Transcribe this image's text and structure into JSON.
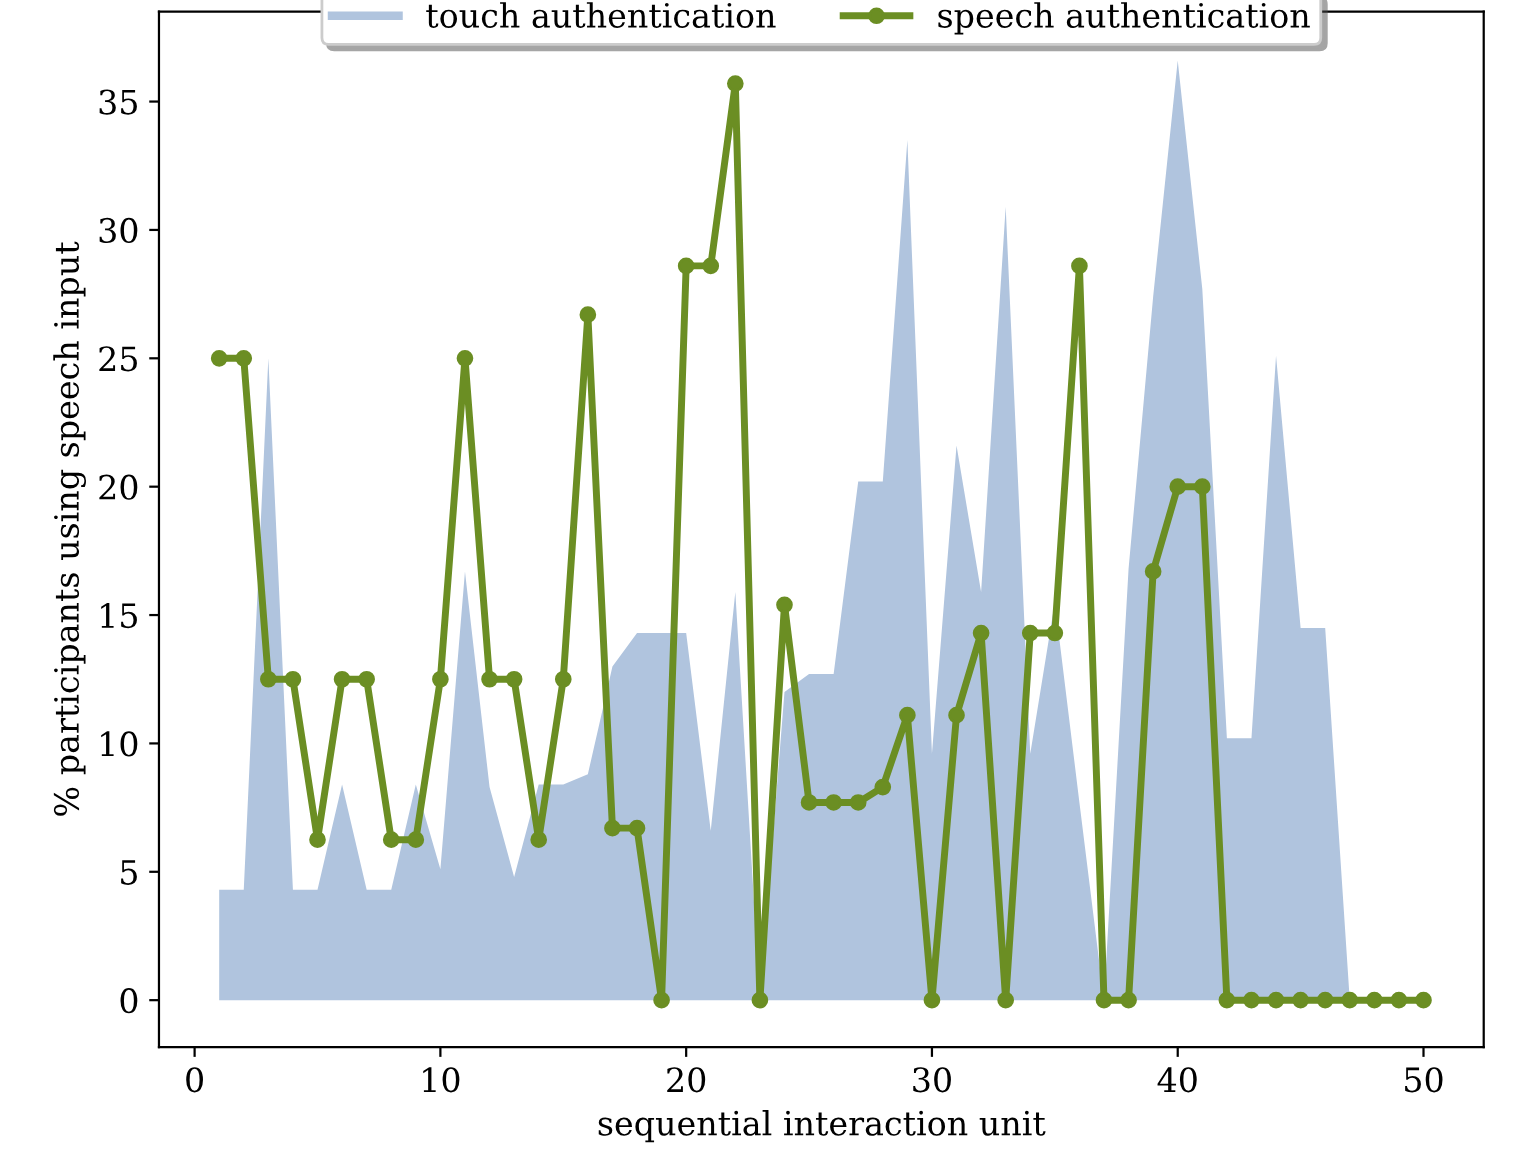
{
  "chart_data": {
    "type": "line",
    "xlabel": "sequential interaction unit",
    "ylabel": "% participants using speech input",
    "x": [
      1,
      2,
      3,
      4,
      5,
      6,
      7,
      8,
      9,
      10,
      11,
      12,
      13,
      14,
      15,
      16,
      17,
      18,
      19,
      20,
      21,
      22,
      23,
      24,
      25,
      26,
      27,
      28,
      29,
      30,
      31,
      32,
      33,
      34,
      35,
      36,
      37,
      38,
      39,
      40,
      41,
      42,
      43,
      44,
      45,
      46,
      47,
      48,
      49,
      50
    ],
    "series": [
      {
        "name": "touch authentication",
        "type": "area",
        "color": "#b0c4de",
        "values": [
          4.3,
          4.3,
          25,
          4.3,
          4.3,
          8.4,
          4.3,
          4.3,
          8.4,
          5.1,
          16.7,
          8.3,
          4.8,
          8.4,
          8.4,
          8.8,
          13,
          14.3,
          14.3,
          14.3,
          6.6,
          15.9,
          0,
          12,
          12.7,
          12.7,
          20.2,
          20.2,
          33.5,
          9.6,
          21.6,
          15.9,
          30.9,
          9.6,
          15.5,
          7.7,
          0,
          16.8,
          27.4,
          36.6,
          27.7,
          10.2,
          10.2,
          25.1,
          14.5,
          14.5,
          0,
          0,
          0,
          0
        ]
      },
      {
        "name": "speech authentication",
        "type": "line",
        "color": "#6b8e23",
        "marker": "circle",
        "values": [
          25,
          25,
          12.5,
          12.5,
          6.25,
          12.5,
          12.5,
          6.25,
          6.25,
          12.5,
          25,
          12.5,
          12.5,
          6.25,
          12.5,
          26.7,
          6.7,
          6.7,
          0,
          28.6,
          28.6,
          35.7,
          0,
          15.4,
          7.7,
          7.7,
          7.7,
          8.3,
          11.1,
          0,
          11.1,
          14.3,
          0,
          14.3,
          14.3,
          28.6,
          0,
          0,
          16.7,
          20,
          20,
          0,
          0,
          0,
          0,
          0,
          0,
          0,
          0,
          0
        ]
      }
    ],
    "xlim": [
      -1.45,
      52.45
    ],
    "ylim": [
      -1.83,
      38.5
    ],
    "xticks": [
      0,
      10,
      20,
      30,
      40,
      50
    ],
    "yticks": [
      0,
      5,
      10,
      15,
      20,
      25,
      30,
      35
    ],
    "grid": false,
    "legend": "top"
  }
}
